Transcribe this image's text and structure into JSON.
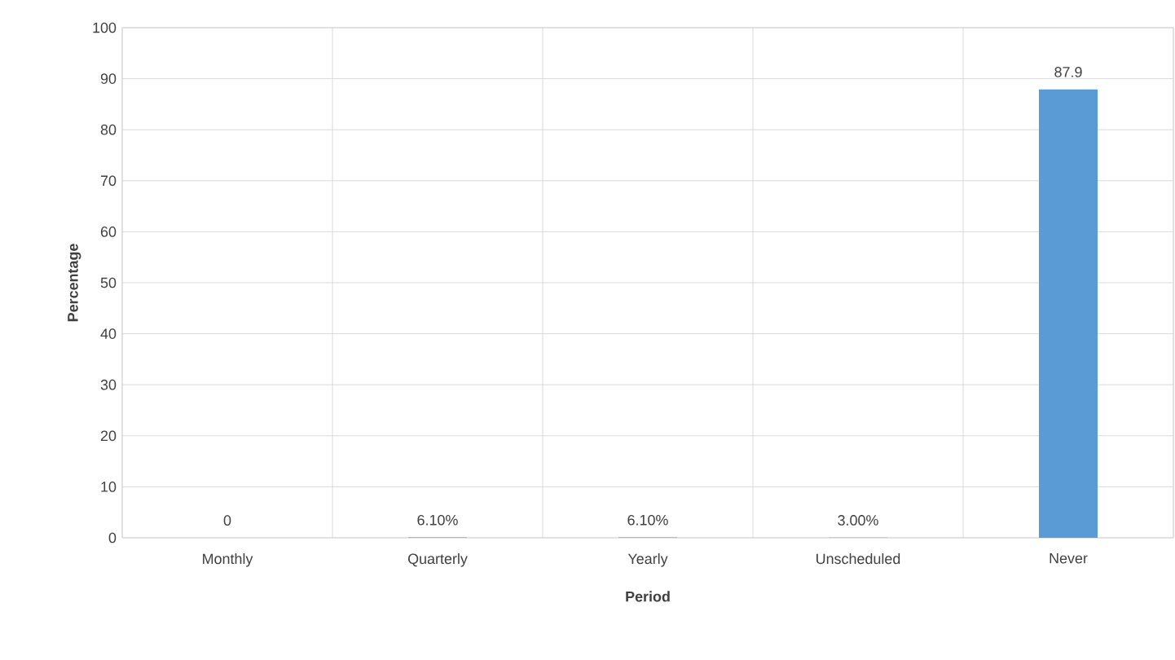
{
  "chart_data": {
    "type": "bar",
    "xlabel": "Period",
    "ylabel": "Percentage",
    "categories": [
      "Monthly",
      "Quarterly",
      "Yearly",
      "Unscheduled",
      "Never"
    ],
    "values": [
      0,
      0.061,
      0.061,
      0.03,
      87.9
    ],
    "value_labels": [
      "0",
      "6.10%",
      "6.10%",
      "3.00%",
      "87.9"
    ],
    "color": "#5b9bd5",
    "ylim": [
      0,
      100
    ],
    "yticks": [
      0,
      10,
      20,
      30,
      40,
      50,
      60,
      70,
      80,
      90,
      100
    ],
    "grid": true
  }
}
